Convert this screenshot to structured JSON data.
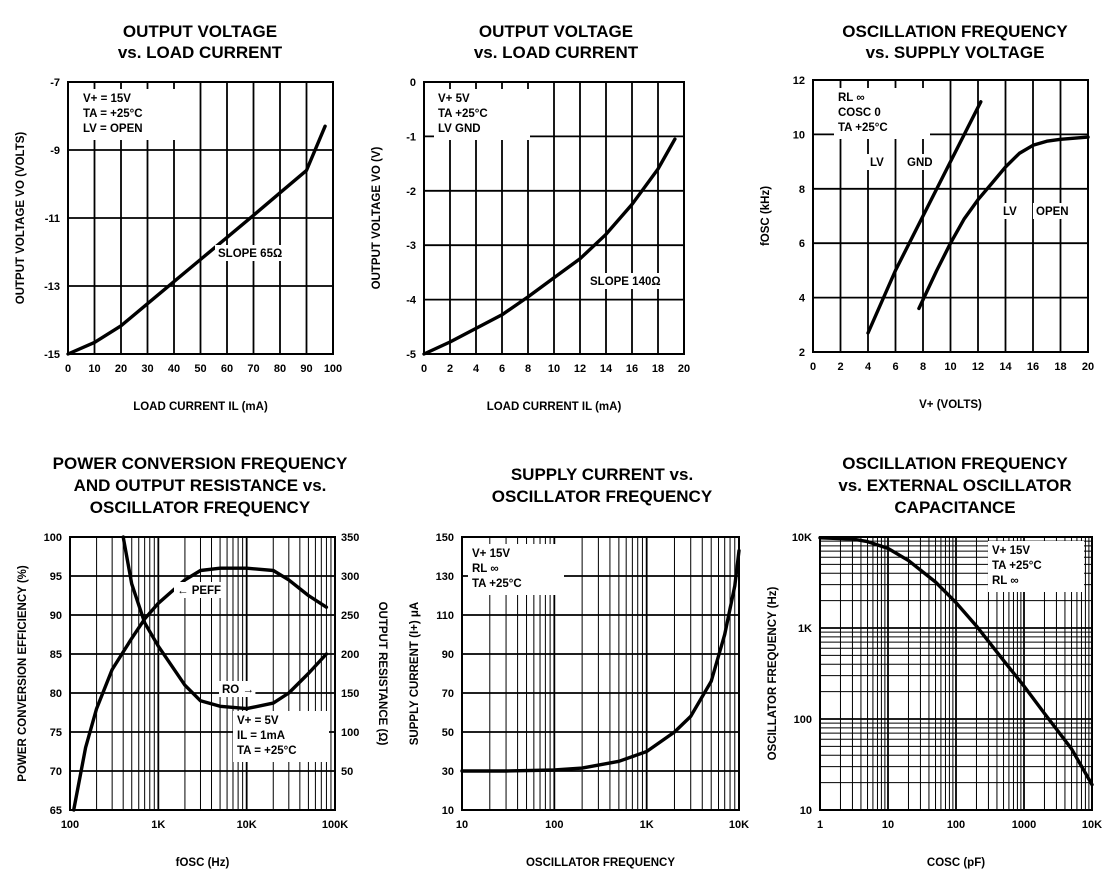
{
  "chart_data": [
    {
      "type": "line",
      "title": [
        "OUTPUT VOLTAGE",
        "vs. LOAD CURRENT"
      ],
      "xlabel": "LOAD CURRENT IL (mA)",
      "ylabel": "OUTPUT VOLTAGE VO (VOLTS)",
      "xscale": "linear",
      "yscale": "linear",
      "xlim": [
        0,
        100
      ],
      "ylim": [
        -15,
        -7
      ],
      "xticks": [
        0,
        10,
        20,
        30,
        40,
        50,
        60,
        70,
        80,
        90,
        100
      ],
      "xticklabels": [
        "0",
        "10",
        "20",
        "30",
        "40",
        "50",
        "60",
        "70",
        "80",
        "90",
        "100"
      ],
      "yticks": [
        -15,
        -13,
        -11,
        -9,
        -7
      ],
      "yticklabels": [
        "-15",
        "-13",
        "-11",
        "-9",
        "-7"
      ],
      "grid": "on",
      "conditions": [
        "V+ = 15V",
        "TA = +25°C",
        "LV = OPEN"
      ],
      "annotations": [
        "SLOPE  65Ω"
      ],
      "series": [
        {
          "name": "",
          "x": [
            0,
            10,
            20,
            30,
            40,
            50,
            60,
            70,
            80,
            90,
            97
          ],
          "y": [
            -15.0,
            -14.66,
            -14.17,
            -13.52,
            -12.87,
            -12.22,
            -11.57,
            -10.92,
            -10.26,
            -9.6,
            -8.3
          ]
        }
      ]
    },
    {
      "type": "line",
      "title": [
        "OUTPUT VOLTAGE",
        "vs. LOAD CURRENT"
      ],
      "xlabel": "LOAD CURRENT IL (mA)",
      "ylabel": "OUTPUT VOLTAGE VO (V)",
      "xscale": "linear",
      "yscale": "linear",
      "xlim": [
        0,
        20
      ],
      "ylim": [
        -5,
        0
      ],
      "xticks": [
        0,
        2,
        4,
        6,
        8,
        10,
        12,
        14,
        16,
        18,
        20
      ],
      "xticklabels": [
        "0",
        "2",
        "4",
        "6",
        "8",
        "10",
        "12",
        "14",
        "16",
        "18",
        "20"
      ],
      "yticks": [
        -5,
        -4,
        -3,
        -2,
        -1,
        0
      ],
      "yticklabels": [
        "-5",
        "-4",
        "-3",
        "-2",
        "-1",
        "0"
      ],
      "grid": "on",
      "conditions": [
        "V+  5V",
        "TA  +25°C",
        "LV  GND"
      ],
      "annotations": [
        "SLOPE  140Ω"
      ],
      "series": [
        {
          "name": "",
          "x": [
            0,
            2,
            4,
            6,
            8,
            10,
            12,
            14,
            16,
            18,
            19.3
          ],
          "y": [
            -5.0,
            -4.78,
            -4.53,
            -4.28,
            -3.95,
            -3.6,
            -3.25,
            -2.8,
            -2.25,
            -1.6,
            -1.05
          ]
        }
      ]
    },
    {
      "type": "line",
      "title": [
        "OSCILLATION FREQUENCY",
        "vs. SUPPLY VOLTAGE"
      ],
      "xlabel": "V+ (VOLTS)",
      "ylabel": "fOSC (kHz)",
      "xscale": "linear",
      "yscale": "linear",
      "xlim": [
        0,
        20
      ],
      "ylim": [
        2,
        12
      ],
      "xticks": [
        0,
        2,
        4,
        6,
        8,
        10,
        12,
        14,
        16,
        18,
        20
      ],
      "xticklabels": [
        "0",
        "2",
        "4",
        "6",
        "8",
        "10",
        "12",
        "14",
        "16",
        "18",
        "20"
      ],
      "yticks": [
        2,
        4,
        6,
        8,
        10,
        12
      ],
      "yticklabels": [
        "2",
        "4",
        "6",
        "8",
        "10",
        "12"
      ],
      "grid": "on",
      "conditions": [
        "RL  ∞",
        "COSC  0",
        "TA  +25°C"
      ],
      "series": [
        {
          "name": "LV  GND",
          "x": [
            4,
            6,
            8,
            10,
            12.2
          ],
          "y": [
            2.7,
            5.0,
            7.0,
            9.0,
            11.2
          ]
        },
        {
          "name": "LV  OPEN",
          "x": [
            7.7,
            9,
            10,
            11,
            12,
            13,
            14,
            15,
            16,
            17,
            18,
            19,
            20
          ],
          "y": [
            3.6,
            5.0,
            6.0,
            6.9,
            7.6,
            8.2,
            8.8,
            9.3,
            9.6,
            9.75,
            9.82,
            9.86,
            9.9
          ]
        }
      ]
    },
    {
      "type": "line",
      "title": [
        "POWER CONVERSION FREQUENCY",
        "AND OUTPUT RESISTANCE vs.",
        "OSCILLATOR FREQUENCY"
      ],
      "xlabel": "fOSC (Hz)",
      "ylabel": "POWER CONVERSION EFFICIENCY (%)",
      "y2label": "OUTPUT RESISTANCE (Ω)",
      "xscale": "log",
      "yscale": "linear",
      "xlim": [
        100,
        100000
      ],
      "ylim": [
        65,
        100
      ],
      "y2lim": [
        0,
        350
      ],
      "xticks": [
        100,
        1000,
        10000,
        100000
      ],
      "xticklabels": [
        "100",
        "1K",
        "10K",
        "100K"
      ],
      "yticks": [
        65,
        70,
        75,
        80,
        85,
        90,
        95,
        100
      ],
      "yticklabels": [
        "65",
        "70",
        "75",
        "80",
        "85",
        "90",
        "95",
        "100"
      ],
      "y2ticks": [
        0,
        50,
        100,
        150,
        200,
        250,
        300,
        350
      ],
      "y2ticklabels": [
        "",
        "50",
        "100",
        "150",
        "200",
        "250",
        "300",
        "350"
      ],
      "grid": "on",
      "conditions": [
        "V+ = 5V",
        "IL = 1mA",
        "TA = +25°C"
      ],
      "series": [
        {
          "name": "PEFF",
          "axis": "left",
          "x": [
            110,
            150,
            200,
            300,
            500,
            700,
            1000,
            2000,
            3000,
            5000,
            10000,
            20000,
            30000,
            50000,
            80000
          ],
          "y": [
            65,
            73,
            78,
            83,
            87,
            89.5,
            91.5,
            94.5,
            95.7,
            96,
            96,
            95.7,
            94.5,
            92.5,
            91
          ]
        },
        {
          "name": "RO",
          "axis": "right",
          "x": [
            400,
            500,
            700,
            1000,
            2000,
            3000,
            5000,
            10000,
            20000,
            30000,
            50000,
            80000
          ],
          "y": [
            350,
            290,
            240,
            210,
            160,
            140,
            133,
            130,
            137,
            150,
            175,
            200
          ]
        }
      ]
    },
    {
      "type": "line",
      "title": [
        "SUPPLY CURRENT vs.",
        "OSCILLATOR FREQUENCY"
      ],
      "xlabel": "OSCILLATOR FREQUENCY",
      "ylabel": "SUPPLY CURRENT (I+) μA",
      "xscale": "log",
      "yscale": "linear",
      "xlim": [
        10,
        10000
      ],
      "ylim": [
        10,
        150
      ],
      "xticks": [
        10,
        100,
        1000,
        10000
      ],
      "xticklabels": [
        "10",
        "100",
        "1K",
        "10K"
      ],
      "yticks": [
        10,
        30,
        50,
        70,
        90,
        110,
        130,
        150
      ],
      "yticklabels": [
        "10",
        "30",
        "50",
        "70",
        "90",
        "110",
        "130",
        "150"
      ],
      "grid": "on",
      "conditions": [
        "V+  15V",
        "RL  ∞",
        "TA  +25°C"
      ],
      "series": [
        {
          "name": "",
          "x": [
            10,
            30,
            100,
            200,
            500,
            1000,
            2000,
            3000,
            5000,
            7000,
            9000,
            10000
          ],
          "y": [
            30,
            30,
            30.5,
            31.5,
            35,
            40,
            50,
            58,
            76,
            100,
            125,
            143
          ]
        }
      ]
    },
    {
      "type": "line",
      "title": [
        "OSCILLATION FREQUENCY",
        "vs. EXTERNAL OSCILLATOR",
        "CAPACITANCE"
      ],
      "xlabel": "COSC (pF)",
      "ylabel": "OSCILLATOR FREQUENCY (Hz)",
      "xscale": "log",
      "yscale": "log",
      "xlim": [
        1,
        10000
      ],
      "ylim": [
        10,
        10000
      ],
      "xticks": [
        1,
        10,
        100,
        1000,
        10000
      ],
      "xticklabels": [
        "1",
        "10",
        "100",
        "1000",
        "10K"
      ],
      "yticks": [
        10,
        100,
        1000,
        10000
      ],
      "yticklabels": [
        "10",
        "100",
        "1K",
        "10K"
      ],
      "grid": "on",
      "conditions": [
        "V+  15V",
        "TA  +25°C",
        "RL  ∞"
      ],
      "series": [
        {
          "name": "",
          "x": [
            1,
            3,
            5,
            10,
            20,
            50,
            100,
            200,
            500,
            1000,
            2000,
            5000,
            10000
          ],
          "y": [
            9800,
            9500,
            8900,
            7500,
            5500,
            3200,
            1900,
            1050,
            440,
            230,
            115,
            47,
            19
          ]
        }
      ]
    }
  ]
}
